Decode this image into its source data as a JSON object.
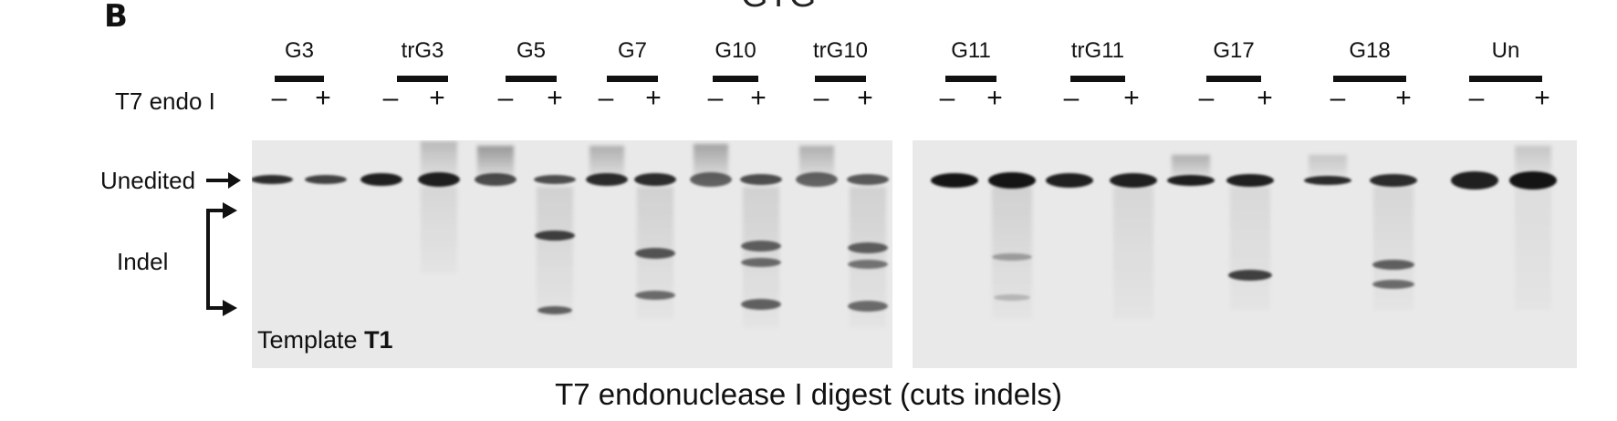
{
  "figure": {
    "panel_label": "B",
    "cropped_title": "GTG",
    "row_label": "T7 endo I",
    "samples": [
      "G3",
      "trG3",
      "G5",
      "G7",
      "G10",
      "trG10",
      "G11",
      "trG11",
      "G17",
      "G18",
      "Un"
    ],
    "minus_sign": "–",
    "plus_sign": "+",
    "unedited_label": "Unedited",
    "indel_label": "Indel",
    "template_prefix": "Template ",
    "template_bold": "T1",
    "caption": "T7 endonuclease I digest (cuts indels)"
  }
}
